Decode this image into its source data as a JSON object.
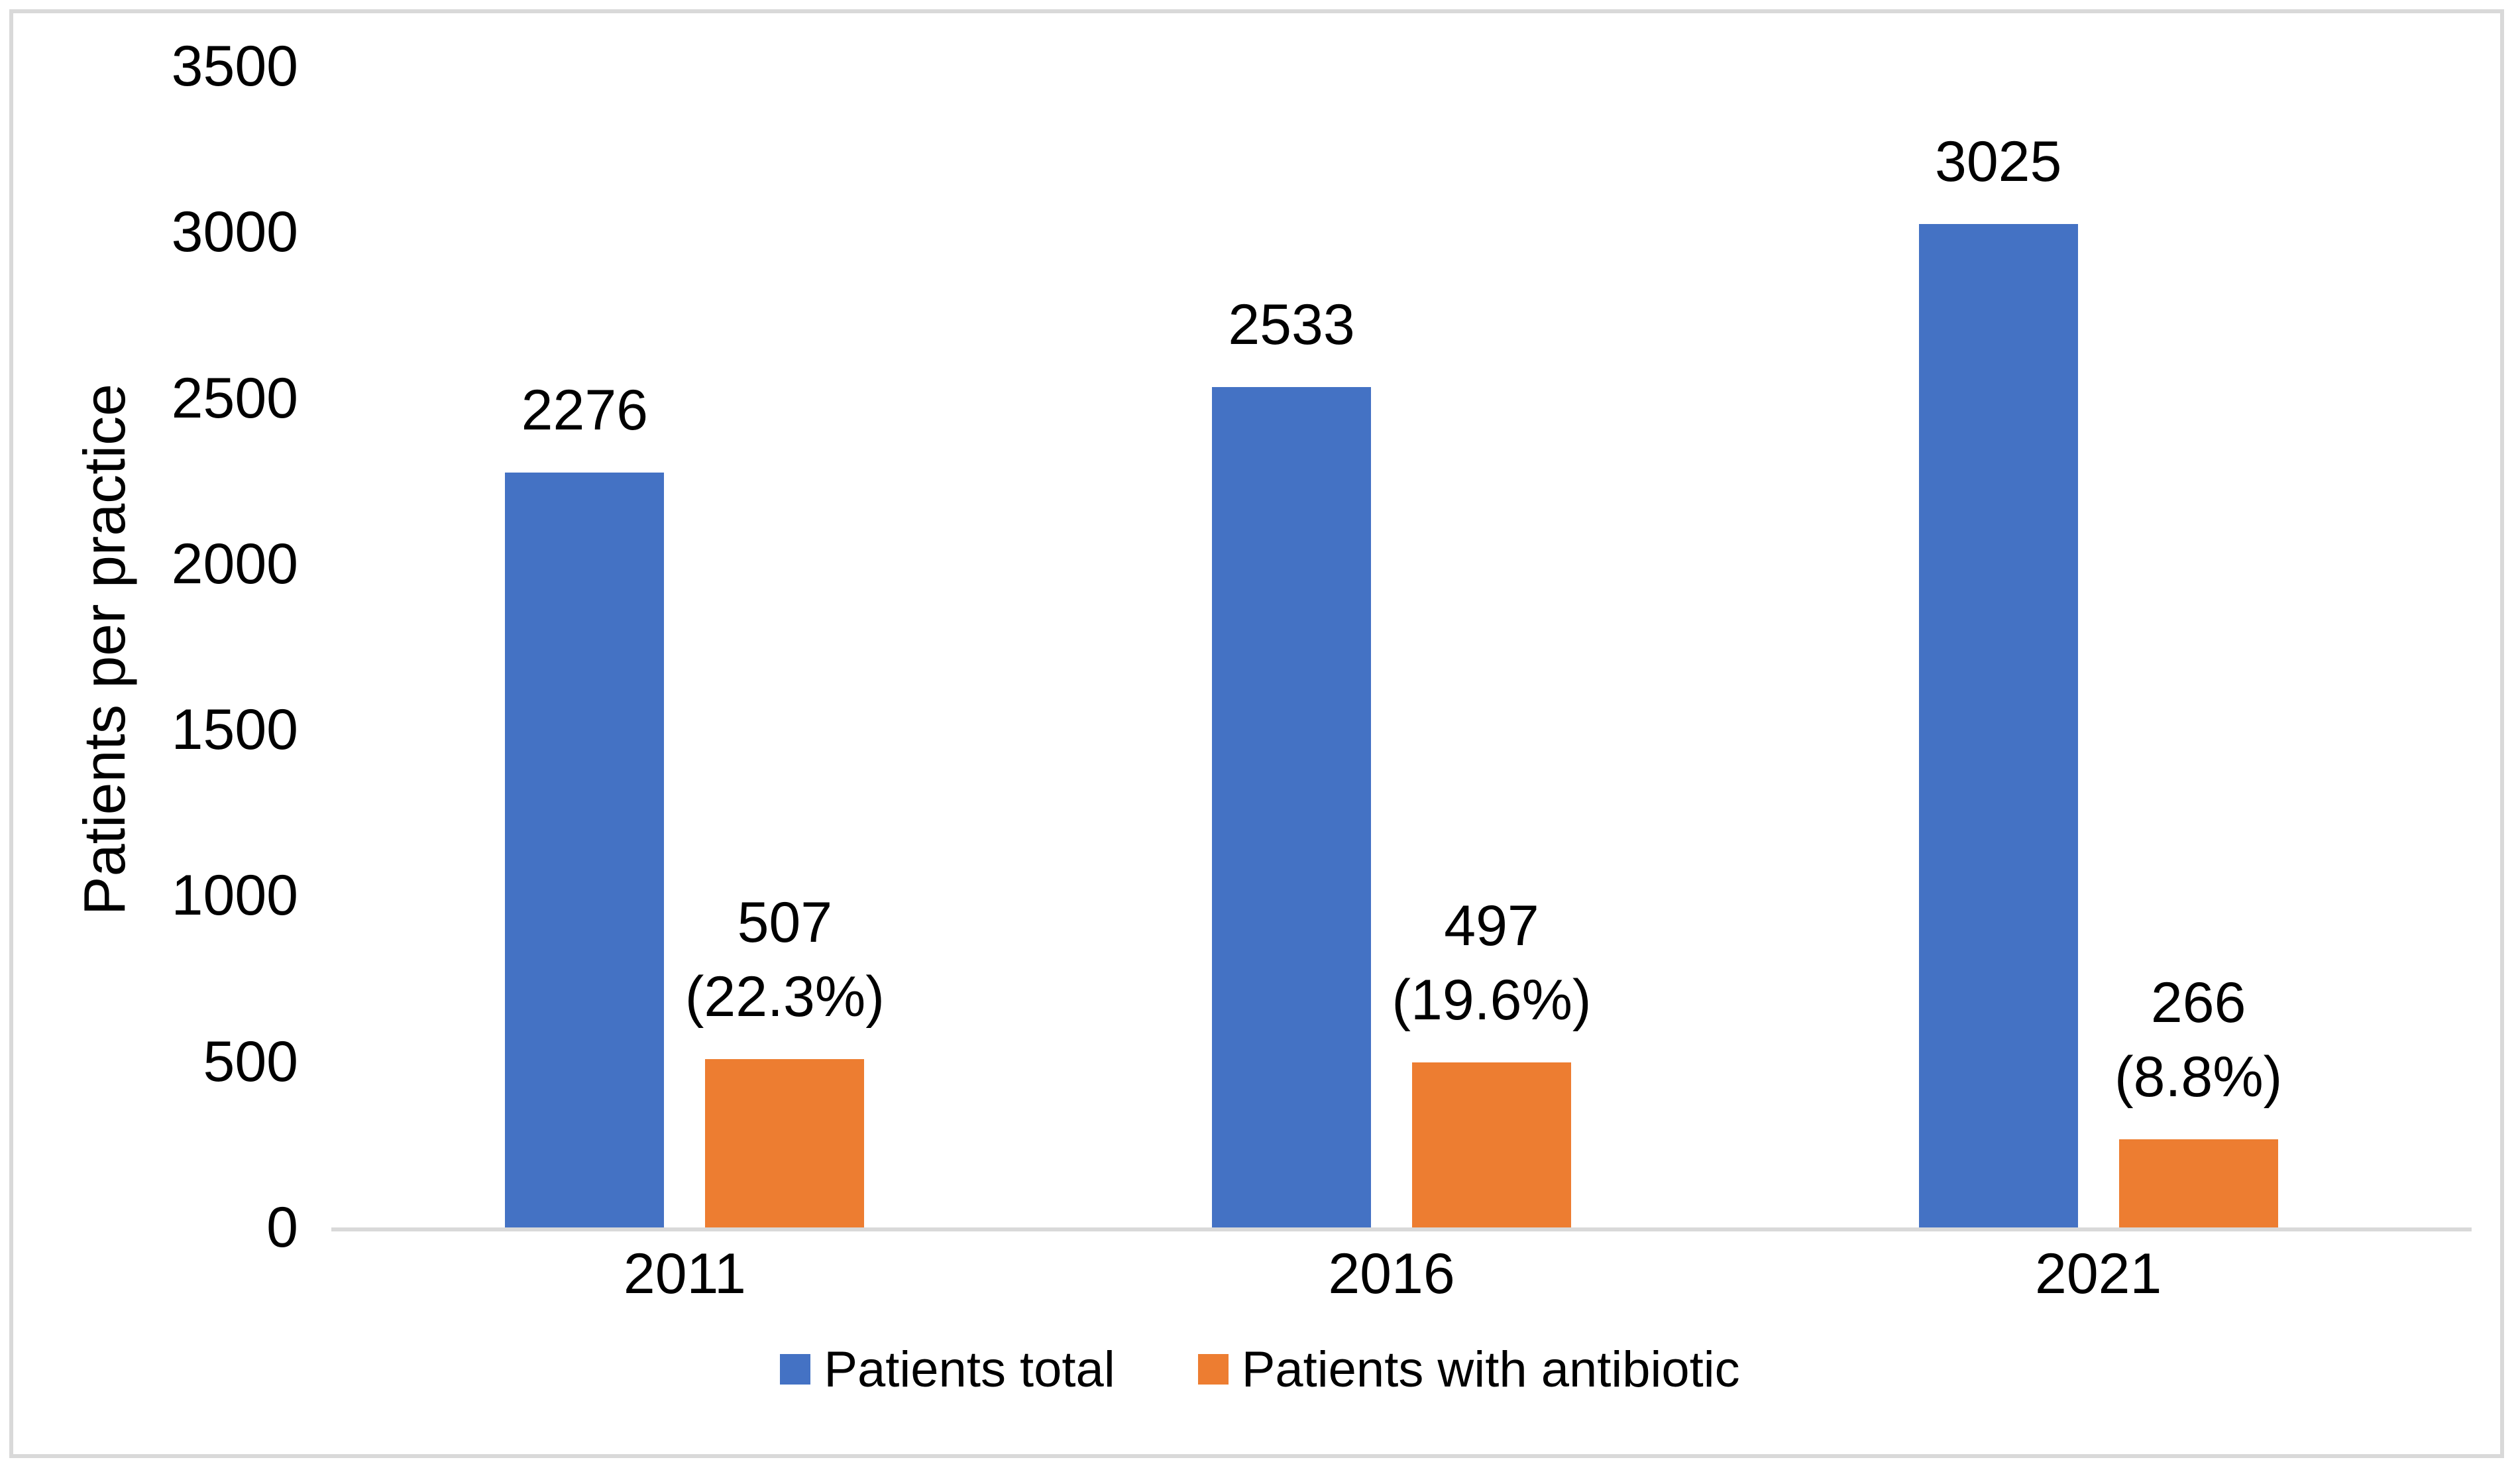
{
  "chart_data": {
    "type": "bar",
    "title": "",
    "categories": [
      "2011",
      "2016",
      "2021"
    ],
    "series": [
      {
        "name": "Patients total",
        "color": "#4472C4",
        "values": [
          2276,
          2533,
          3025
        ],
        "data_labels": [
          [
            "2276"
          ],
          [
            "2533"
          ],
          [
            "3025"
          ]
        ]
      },
      {
        "name": "Patients with antibiotic",
        "color": "#ED7D31",
        "values": [
          507,
          497,
          266
        ],
        "data_labels": [
          [
            "507",
            "(22.3%)"
          ],
          [
            "497",
            "(19.6%)"
          ],
          [
            "266",
            "(8.8%)"
          ]
        ]
      }
    ],
    "xlabel": "",
    "ylabel": "Patients per practice",
    "ylim": [
      0,
      3500
    ],
    "y_ticks": [
      0,
      500,
      1000,
      1500,
      2000,
      2500,
      3000,
      3500
    ],
    "y_tick_labels": [
      "0",
      "500",
      "1000",
      "1500",
      "2000",
      "2500",
      "3000",
      "3500"
    ],
    "grid": false,
    "legend_position": "bottom",
    "colors": {
      "axis_line": "#D9D9D9",
      "frame_border": "#D9D9D9",
      "text": "#000000",
      "background": "#FFFFFF"
    }
  }
}
